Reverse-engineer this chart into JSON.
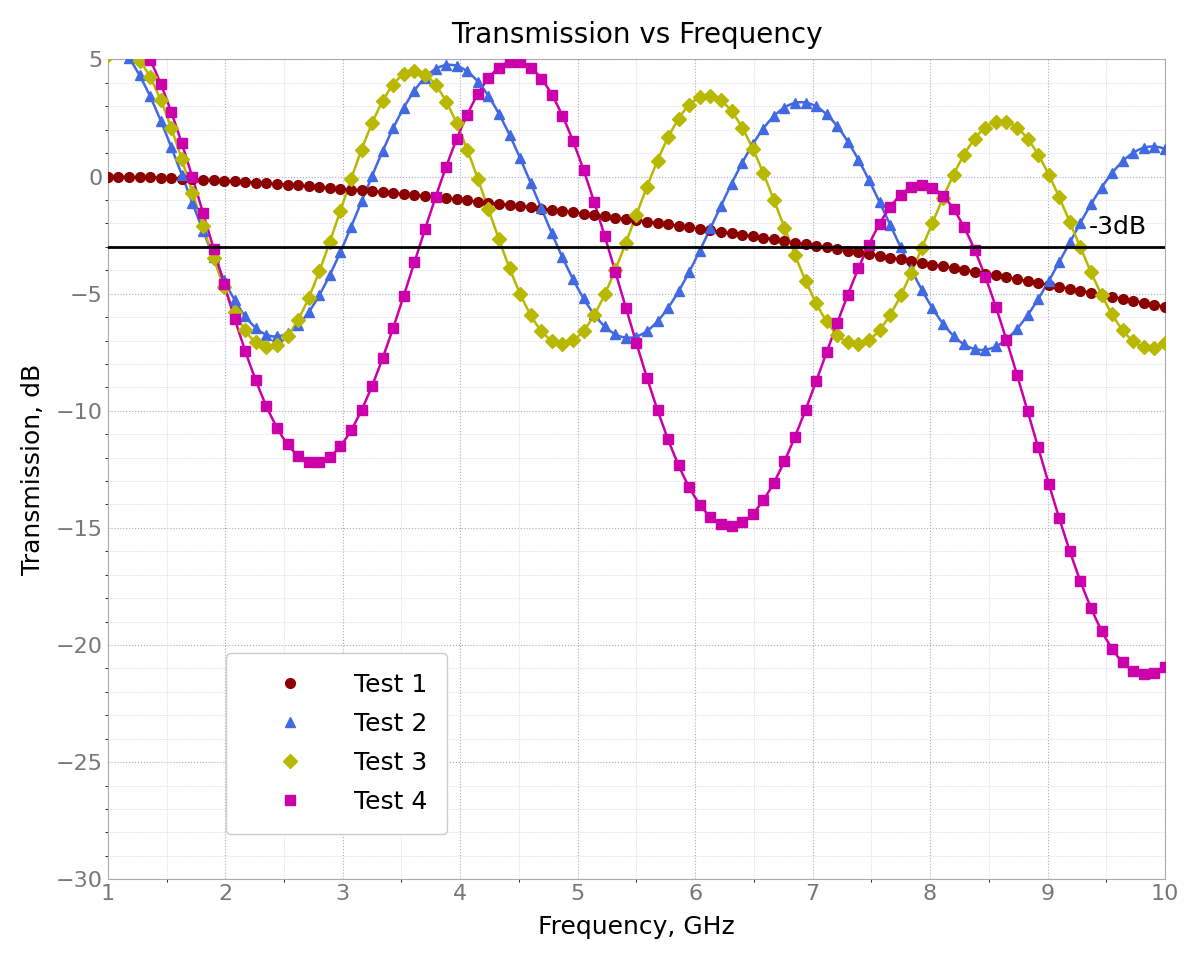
{
  "title": "Transmission vs Frequency",
  "xlabel": "Frequency, GHz",
  "ylabel": "Transmission, dB",
  "xlim": [
    1,
    10
  ],
  "ylim": [
    -30,
    5
  ],
  "yticks": [
    5,
    0,
    -5,
    -10,
    -15,
    -20,
    -25,
    -30
  ],
  "xticks": [
    1,
    2,
    3,
    4,
    5,
    6,
    7,
    8,
    9,
    10
  ],
  "ref_line_y": -3,
  "ref_line_label": "-3dB",
  "background_color": "#ffffff",
  "plot_bg_color": "#ffffff",
  "grid_color": "#aaaacc",
  "series": [
    {
      "label": "Test 1",
      "color": "#8b0000",
      "marker": "o"
    },
    {
      "label": "Test 2",
      "color": "#4169e1",
      "marker": "^"
    },
    {
      "label": "Test 3",
      "color": "#b8b800",
      "marker": "D"
    },
    {
      "label": "Test 4",
      "color": "#cc00aa",
      "marker": "s"
    }
  ],
  "title_fontsize": 20,
  "label_fontsize": 18,
  "tick_fontsize": 16,
  "legend_fontsize": 18
}
